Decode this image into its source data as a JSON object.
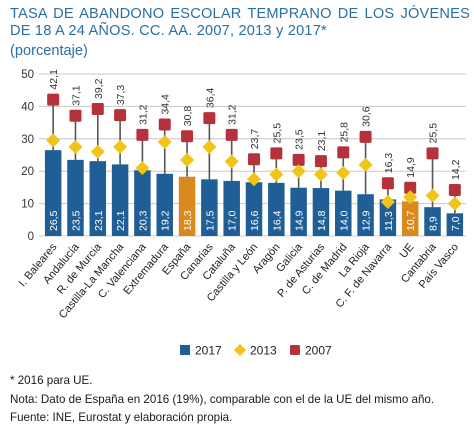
{
  "title": "TASA DE ABANDONO ESCOLAR TEMPRANO DE LOS JÓVENES DE 18 A 24 AÑOS. CC. AA. 2007, 2013 y 2017*",
  "subtitle": "(porcentaje)",
  "notes": [
    "* 2016 para UE.",
    "Nota: Dato de España en 2016 (19%), comparable con el de la UE del mismo año.",
    "Fuente: INE, Eurostat  y elaboración propia."
  ],
  "colors": {
    "bar2017": "#1f5f96",
    "highlight": "#d9891e",
    "marker2013": "#f2c417",
    "marker2007": "#b5313b",
    "grid": "#c8c8c8",
    "axis_text": "#333333"
  },
  "chart_data": {
    "type": "bar",
    "categories": [
      "I. Baleares",
      "Andalucía",
      "R. de Murcia",
      "Castilla-La Mancha",
      "C. Valenciana",
      "Extremadura",
      "España",
      "Canarias",
      "Cataluña",
      "Castilla y León",
      "Aragón",
      "Galicia",
      "P. de Asturias",
      "C. de Madrid",
      "La Rioja",
      "C. F. de Navarra",
      "UE",
      "Cantabria",
      "País Vasco"
    ],
    "highlighted_categories": [
      "España",
      "UE"
    ],
    "series": [
      {
        "name": "2017",
        "type": "bar",
        "values": [
          26.5,
          23.5,
          23.1,
          22.1,
          20.3,
          19.2,
          18.3,
          17.5,
          17.0,
          16.6,
          16.4,
          14.9,
          14.8,
          14.0,
          12.9,
          11.3,
          10.7,
          8.9,
          7.0
        ]
      },
      {
        "name": "2013",
        "type": "marker",
        "values": [
          29.5,
          27.5,
          26.0,
          27.5,
          21.0,
          29.0,
          23.5,
          27.5,
          23.0,
          17.5,
          19.0,
          20.0,
          19.0,
          19.5,
          22.0,
          10.5,
          12.0,
          12.5,
          10.0
        ]
      },
      {
        "name": "2007",
        "type": "marker",
        "values": [
          42.1,
          37.1,
          39.2,
          37.3,
          31.2,
          34.4,
          30.8,
          36.4,
          31.2,
          23.7,
          25.5,
          23.5,
          23.1,
          25.8,
          30.6,
          16.3,
          14.9,
          25.5,
          14.2
        ]
      }
    ],
    "data_labels_2017": [
      "26,5",
      "23,5",
      "23,1",
      "22,1",
      "20,3",
      "19,2",
      "18,3",
      "17,5",
      "17,0",
      "16,6",
      "16,4",
      "14,9",
      "14,8",
      "14,0",
      "12,9",
      "11,3",
      "10,7",
      "8,9",
      "7,0"
    ],
    "data_labels_2007": [
      "42,1",
      "37,1",
      "39,2",
      "37,3",
      "31,2",
      "34,4",
      "30,8",
      "36,4",
      "31,2",
      "23,7",
      "25,5",
      "23,5",
      "23,1",
      "25,8",
      "30,6",
      "16,3",
      "14,9",
      "25,5",
      "14,2"
    ],
    "ylim": [
      0,
      50
    ],
    "yticks": [
      0,
      10,
      20,
      30,
      40,
      50
    ],
    "grid": true,
    "legend": {
      "position": "bottom",
      "entries": [
        "2017",
        "2013",
        "2007"
      ]
    },
    "xlabel": "",
    "ylabel": ""
  }
}
